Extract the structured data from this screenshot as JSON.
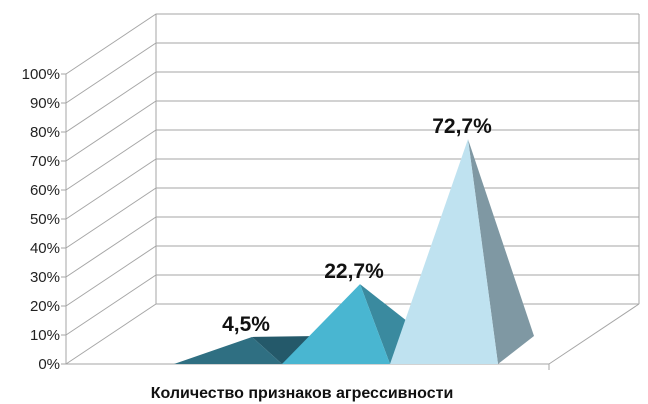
{
  "chart_data": {
    "type": "bar",
    "style": "3d-pyramid",
    "categories": [
      "Количество признаков агрессивности"
    ],
    "series": [
      {
        "values": [
          4.5
        ],
        "label": "4,5%",
        "colors": {
          "front": "#2f6f82",
          "side": "#24596a"
        }
      },
      {
        "values": [
          22.7
        ],
        "label": "22,7%",
        "colors": {
          "front": "#49b6d1",
          "side": "#3a8a9f"
        }
      },
      {
        "values": [
          72.7
        ],
        "label": "72,7%",
        "colors": {
          "front": "#bfe2f0",
          "side": "#7f98a3"
        }
      }
    ],
    "xlabel": "Количество признаков агрессивности",
    "ylabel": "",
    "ylim": [
      0,
      100
    ],
    "yticks": [
      "0%",
      "10%",
      "20%",
      "30%",
      "40%",
      "50%",
      "60%",
      "70%",
      "80%",
      "90%",
      "100%"
    ],
    "grid": true,
    "legend": "none"
  }
}
